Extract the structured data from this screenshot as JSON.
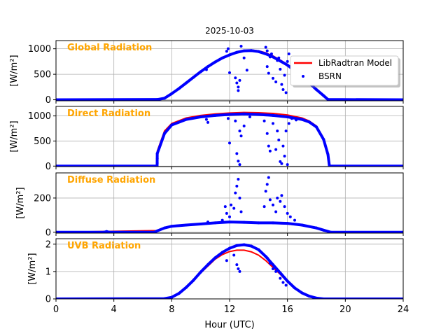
{
  "chart_data": {
    "type": "line",
    "title": "2025-10-03",
    "xlabel": "Hour (UTC)",
    "xlim": [
      0,
      24
    ],
    "xticks": [
      "0",
      "4",
      "8",
      "12",
      "16",
      "20",
      "24"
    ],
    "xtick_values": [
      0,
      4,
      8,
      12,
      16,
      20,
      24
    ],
    "grid": true,
    "legend": {
      "placement": "top-right (first panel)",
      "entries": [
        "LibRadtran Model",
        "BSRN"
      ]
    },
    "colors": {
      "model": "#ff0000",
      "bsrn": "#0000ff",
      "panel_title": "#FFA500"
    },
    "panels": [
      {
        "title": "Global Radiation",
        "ylabel": "[W/m²]",
        "ylim": [
          -20,
          1160
        ],
        "yticks": [
          "0",
          "500",
          "1000"
        ],
        "ytick_values": [
          0,
          500,
          1000
        ],
        "model": {
          "x": [
            0,
            7,
            7.5,
            8,
            8.5,
            9,
            9.5,
            10,
            10.5,
            11,
            11.5,
            12,
            12.5,
            13,
            13.5,
            14,
            14.5,
            15,
            15.5,
            16,
            16.5,
            17,
            17.5,
            18,
            18.5,
            18.8,
            24
          ],
          "y": [
            0,
            0,
            40,
            130,
            230,
            340,
            450,
            560,
            660,
            750,
            830,
            890,
            940,
            970,
            975,
            960,
            920,
            860,
            780,
            690,
            580,
            460,
            340,
            210,
            90,
            10,
            0
          ]
        },
        "bsrn": {
          "x": [
            0,
            7,
            7.5,
            8,
            8.5,
            9,
            9.5,
            10,
            10.5,
            11,
            11.5,
            12,
            12.5,
            13,
            13.5,
            14,
            14.5,
            15,
            15.5,
            16,
            16.5,
            17,
            17.5,
            18,
            18.5,
            18.8,
            24
          ],
          "y": [
            0,
            5,
            30,
            120,
            220,
            330,
            440,
            550,
            650,
            740,
            820,
            880,
            930,
            960,
            965,
            945,
            900,
            840,
            760,
            680,
            570,
            450,
            330,
            200,
            80,
            5,
            0
          ]
        },
        "bsrn_outliers": [
          [
            10.4,
            590
          ],
          [
            11.8,
            950
          ],
          [
            11.9,
            1000
          ],
          [
            12.0,
            530
          ],
          [
            12.4,
            430
          ],
          [
            12.5,
            330
          ],
          [
            12.6,
            250
          ],
          [
            12.6,
            180
          ],
          [
            12.7,
            380
          ],
          [
            12.8,
            1050
          ],
          [
            13.0,
            820
          ],
          [
            13.2,
            580
          ],
          [
            14.5,
            1030
          ],
          [
            14.6,
            960
          ],
          [
            14.6,
            650
          ],
          [
            14.7,
            520
          ],
          [
            14.9,
            900
          ],
          [
            15.0,
            420
          ],
          [
            15.2,
            350
          ],
          [
            15.4,
            820
          ],
          [
            15.5,
            600
          ],
          [
            15.6,
            300
          ],
          [
            15.7,
            200
          ],
          [
            15.8,
            480
          ],
          [
            15.9,
            140
          ],
          [
            16.0,
            750
          ],
          [
            16.1,
            900
          ],
          [
            15.3,
            770
          ],
          [
            14.8,
            840
          ]
        ]
      },
      {
        "title": "Direct Radiation",
        "ylabel": "[W/m²]",
        "ylim": [
          -10,
          1190
        ],
        "yticks": [
          "0",
          "500",
          "1000"
        ],
        "ytick_values": [
          0,
          500,
          1000
        ],
        "model": {
          "x": [
            0,
            6.99,
            7,
            7.5,
            8,
            9,
            10,
            11,
            12,
            13,
            14,
            15,
            16,
            17,
            17.5,
            18,
            18.5,
            18.8,
            18.9,
            24
          ],
          "y": [
            0,
            0,
            300,
            700,
            850,
            960,
            1010,
            1040,
            1060,
            1070,
            1065,
            1050,
            1020,
            960,
            900,
            800,
            550,
            250,
            0,
            0
          ]
        },
        "bsrn": {
          "x": [
            0,
            6.99,
            7,
            7.5,
            8,
            9,
            10,
            11,
            12,
            13,
            14,
            15,
            16,
            17,
            17.5,
            18,
            18.5,
            18.8,
            18.9,
            24
          ],
          "y": [
            0,
            0,
            250,
            650,
            820,
            930,
            980,
            1010,
            1030,
            1040,
            1030,
            1010,
            980,
            930,
            880,
            780,
            530,
            230,
            0,
            0
          ]
        },
        "bsrn_outliers": [
          [
            7.0,
            60
          ],
          [
            7.0,
            150
          ],
          [
            10.4,
            930
          ],
          [
            10.5,
            870
          ],
          [
            11.9,
            950
          ],
          [
            12.0,
            460
          ],
          [
            12.4,
            900
          ],
          [
            12.5,
            250
          ],
          [
            12.6,
            100
          ],
          [
            12.7,
            30
          ],
          [
            12.7,
            700
          ],
          [
            12.8,
            600
          ],
          [
            13.0,
            800
          ],
          [
            13.4,
            980
          ],
          [
            14.4,
            900
          ],
          [
            14.6,
            650
          ],
          [
            14.7,
            400
          ],
          [
            14.8,
            300
          ],
          [
            15.0,
            850
          ],
          [
            15.2,
            330
          ],
          [
            15.3,
            700
          ],
          [
            15.4,
            520
          ],
          [
            15.5,
            90
          ],
          [
            15.6,
            50
          ],
          [
            15.7,
            400
          ],
          [
            15.8,
            200
          ],
          [
            15.9,
            700
          ],
          [
            16.0,
            30
          ],
          [
            16.1,
            850
          ],
          [
            16.3,
            950
          ],
          [
            16.6,
            920
          ]
        ]
      },
      {
        "title": "Diffuse Radiation",
        "ylabel": "[W/m²]",
        "ylim": [
          -5,
          347
        ],
        "yticks": [
          "0",
          "200"
        ],
        "ytick_values": [
          0,
          200
        ],
        "model": {
          "x": [
            0,
            7,
            7.5,
            8,
            9,
            10,
            11,
            12,
            13,
            14,
            15,
            16,
            17,
            18,
            18.5,
            19,
            24
          ],
          "y": [
            0,
            10,
            25,
            35,
            42,
            50,
            55,
            58,
            58,
            55,
            52,
            48,
            40,
            25,
            12,
            0,
            0
          ]
        },
        "bsrn": {
          "x": [
            0,
            3.3,
            3.5,
            3.7,
            6.8,
            7,
            7.5,
            8,
            9,
            10,
            11,
            12,
            13,
            14,
            15,
            16,
            17,
            18,
            18.5,
            19,
            24
          ],
          "y": [
            0,
            0,
            4,
            0,
            0,
            8,
            25,
            35,
            42,
            48,
            55,
            60,
            58,
            55,
            55,
            52,
            42,
            25,
            12,
            0,
            0
          ]
        },
        "bsrn_outliers": [
          [
            10.5,
            60
          ],
          [
            11.5,
            70
          ],
          [
            11.7,
            150
          ],
          [
            11.8,
            110
          ],
          [
            12.0,
            90
          ],
          [
            12.1,
            160
          ],
          [
            12.3,
            140
          ],
          [
            12.4,
            230
          ],
          [
            12.5,
            270
          ],
          [
            12.6,
            310
          ],
          [
            12.7,
            200
          ],
          [
            12.8,
            120
          ],
          [
            14.4,
            150
          ],
          [
            14.5,
            240
          ],
          [
            14.6,
            280
          ],
          [
            14.7,
            320
          ],
          [
            14.8,
            190
          ],
          [
            15.0,
            160
          ],
          [
            15.2,
            120
          ],
          [
            15.3,
            200
          ],
          [
            15.5,
            180
          ],
          [
            15.6,
            215
          ],
          [
            15.8,
            150
          ],
          [
            16.0,
            110
          ],
          [
            16.2,
            90
          ],
          [
            16.5,
            70
          ]
        ]
      },
      {
        "title": "UVB Radiation",
        "ylabel": "[W/m²]",
        "ylim": [
          0,
          2.2
        ],
        "yticks": [
          "0",
          "1",
          "2"
        ],
        "ytick_values": [
          0,
          1,
          2
        ],
        "model": {
          "x": [
            0,
            7.5,
            8,
            8.5,
            9,
            9.5,
            10,
            10.5,
            11,
            11.5,
            12,
            12.5,
            13,
            13.5,
            14,
            14.5,
            15,
            15.5,
            16,
            16.5,
            17,
            17.5,
            18,
            18.5,
            24
          ],
          "y": [
            0,
            0.01,
            0.05,
            0.2,
            0.4,
            0.65,
            0.95,
            1.2,
            1.45,
            1.62,
            1.73,
            1.78,
            1.78,
            1.72,
            1.6,
            1.4,
            1.15,
            0.9,
            0.62,
            0.4,
            0.22,
            0.1,
            0.03,
            0,
            0
          ]
        },
        "bsrn": {
          "x": [
            0,
            7.5,
            8,
            8.5,
            9,
            9.5,
            10,
            10.5,
            11,
            11.5,
            12,
            12.5,
            13,
            13.5,
            14,
            14.5,
            15,
            15.5,
            16,
            16.5,
            17,
            17.5,
            18,
            18.5,
            24
          ],
          "y": [
            0,
            0.01,
            0.06,
            0.2,
            0.42,
            0.68,
            0.98,
            1.25,
            1.5,
            1.7,
            1.85,
            1.95,
            1.98,
            1.93,
            1.8,
            1.55,
            1.25,
            0.95,
            0.65,
            0.4,
            0.22,
            0.1,
            0.03,
            0,
            0
          ]
        },
        "bsrn_outliers": [
          [
            11.8,
            1.4
          ],
          [
            12.3,
            1.6
          ],
          [
            12.5,
            1.25
          ],
          [
            12.6,
            1.1
          ],
          [
            12.7,
            1.0
          ],
          [
            14.6,
            1.5
          ],
          [
            14.8,
            1.3
          ],
          [
            15.0,
            1.1
          ],
          [
            15.2,
            1.0
          ],
          [
            15.5,
            0.75
          ],
          [
            15.7,
            0.6
          ],
          [
            15.9,
            0.5
          ]
        ]
      }
    ]
  }
}
